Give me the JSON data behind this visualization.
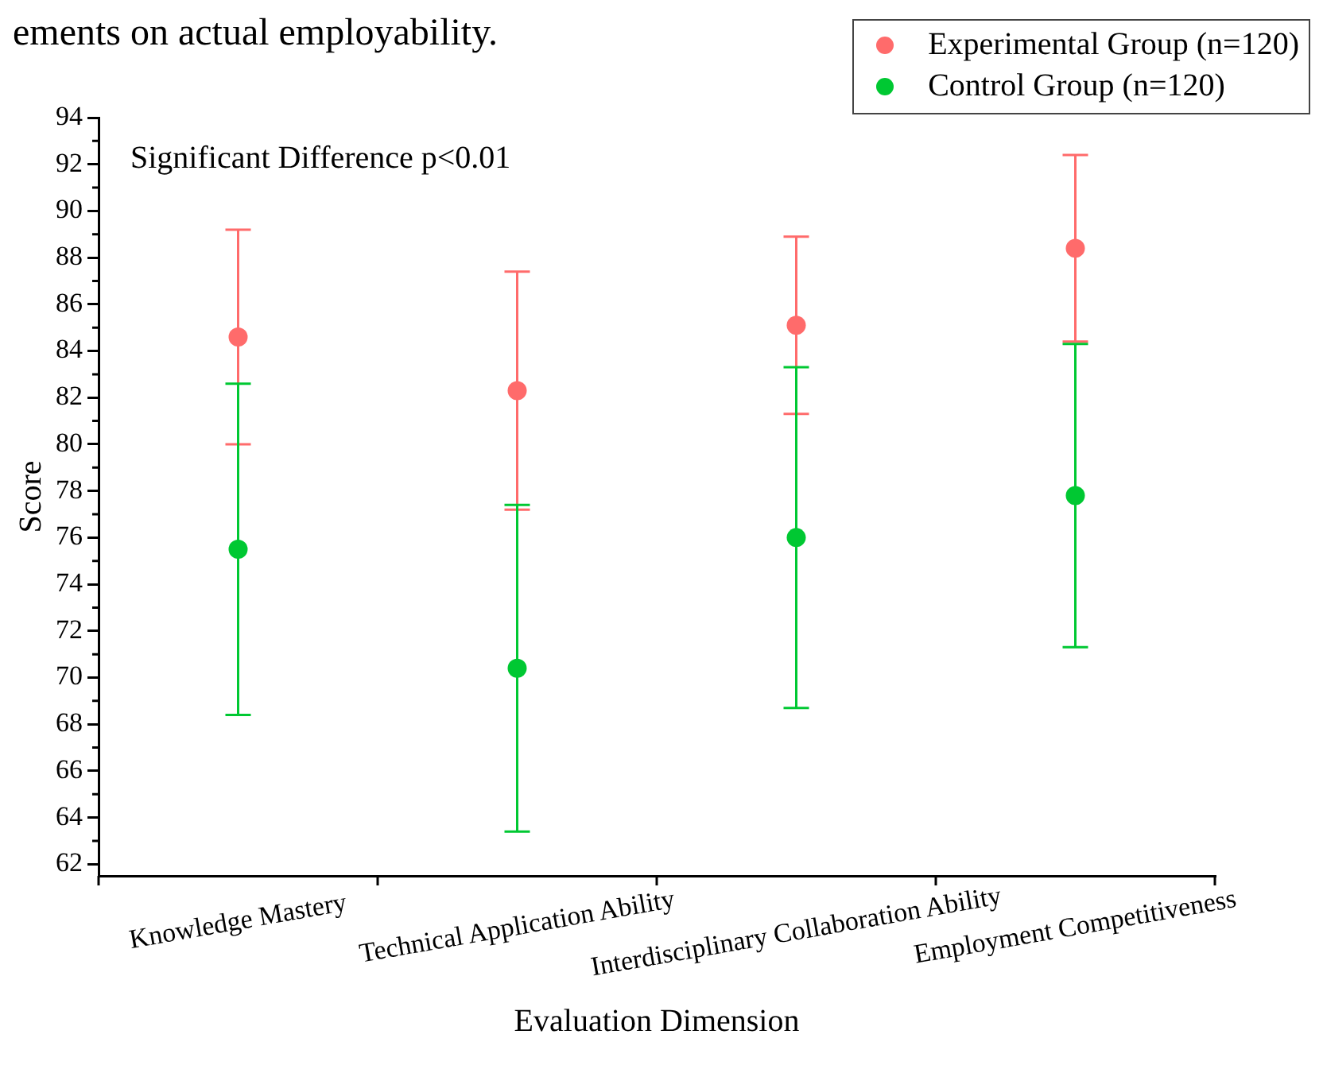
{
  "chart_data": {
    "type": "scatter",
    "xlabel": "Evaluation Dimension",
    "ylabel": "Score",
    "annotations": [
      "ements on actual employability.",
      "Significant Difference p<0.01"
    ],
    "categories": [
      "Knowledge Mastery",
      "Technical Application Ability",
      "Interdisciplinary Collaboration Ability",
      "Employment Competitiveness"
    ],
    "series": [
      {
        "name": "Experimental Group (n=120)",
        "color": "#ff6b6b",
        "values": [
          84.6,
          82.3,
          85.1,
          88.4
        ],
        "errors": [
          4.6,
          5.1,
          3.8,
          4.0
        ]
      },
      {
        "name": "Control Group (n=120)",
        "color": "#00c832",
        "values": [
          75.5,
          70.4,
          76.0,
          77.8
        ],
        "errors": [
          7.1,
          7.0,
          7.3,
          6.5
        ]
      }
    ],
    "ylim": [
      61.5,
      94
    ],
    "yticks": [
      62,
      64,
      66,
      68,
      70,
      72,
      74,
      76,
      78,
      80,
      82,
      84,
      86,
      88,
      90,
      92,
      94
    ],
    "grid": false,
    "legend": "top right",
    "marker": "circle"
  }
}
